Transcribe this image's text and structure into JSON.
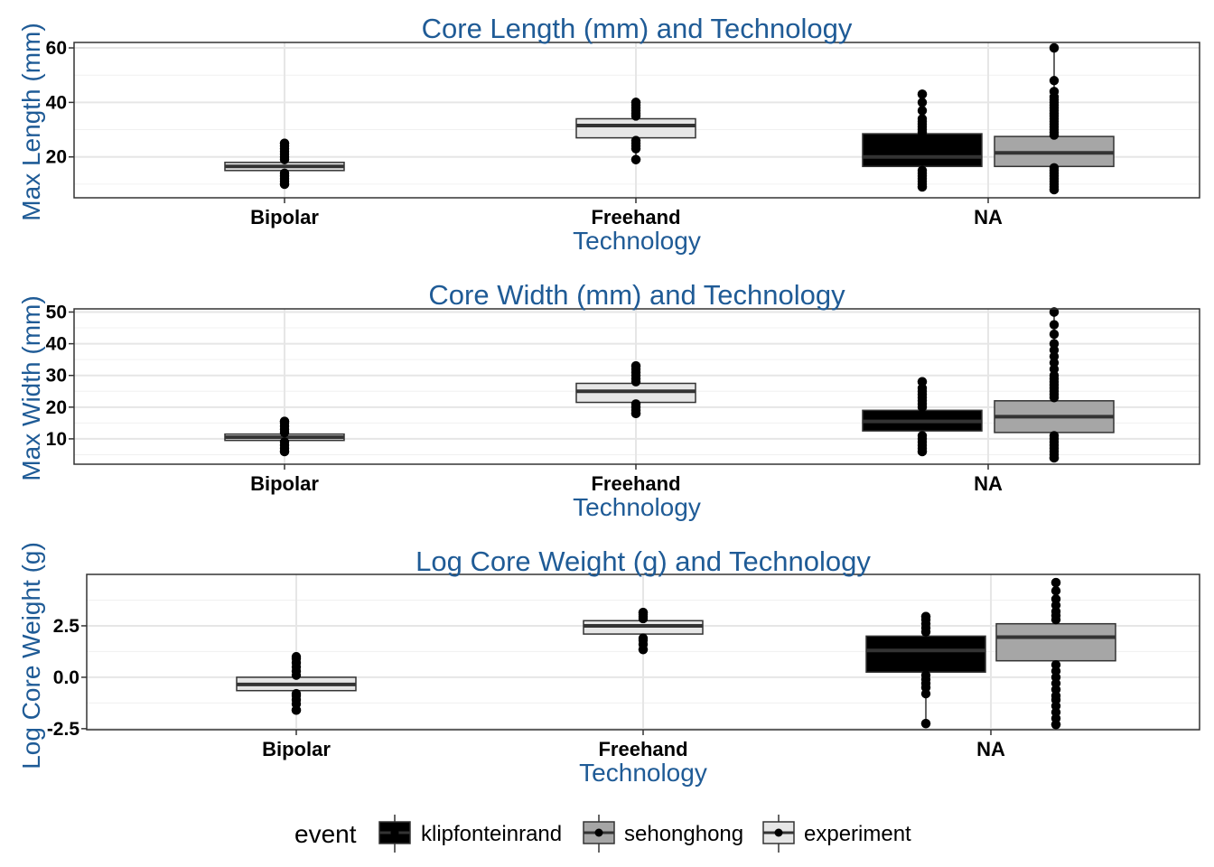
{
  "legend": {
    "title": "event",
    "items": [
      {
        "label": "klipfonteinrand",
        "color": "#000000"
      },
      {
        "label": "sehonghong",
        "color": "#a6a6a6"
      },
      {
        "label": "experiment",
        "color": "#e6e6e6"
      }
    ]
  },
  "chart_data": [
    {
      "type": "boxplot",
      "title": "Core Length (mm) and Technology",
      "xlabel": "Technology",
      "ylabel": "Max Length (mm)",
      "categories": [
        "Bipolar",
        "Freehand",
        "NA"
      ],
      "yticks": [
        "20",
        "40",
        "60"
      ],
      "ytick_values": [
        20,
        40,
        60
      ],
      "ylim": [
        5,
        62
      ],
      "boxes": [
        {
          "category": "Bipolar",
          "event": "experiment",
          "min": 10,
          "q1": 15,
          "median": 16.5,
          "q3": 18,
          "max": 25,
          "points": [
            10,
            11,
            12,
            13,
            14,
            19,
            20,
            21,
            22,
            23,
            24,
            25
          ]
        },
        {
          "category": "Freehand",
          "event": "experiment",
          "min": 19,
          "q1": 27,
          "median": 31.5,
          "q3": 34,
          "max": 40,
          "points": [
            19,
            23,
            24,
            25,
            26,
            35,
            36,
            37,
            38,
            39,
            40
          ]
        },
        {
          "category": "NA",
          "event": "klipfonteinrand",
          "min": 9,
          "q1": 16.5,
          "median": 20,
          "q3": 28.5,
          "max": 43,
          "points": [
            9,
            10,
            11,
            12,
            13,
            14,
            15,
            29,
            30,
            31,
            32,
            33,
            34,
            37,
            40,
            43
          ]
        },
        {
          "category": "NA",
          "event": "sehonghong",
          "min": 8,
          "q1": 16.5,
          "median": 21.5,
          "q3": 27.5,
          "max": 60,
          "points": [
            8,
            9,
            10,
            11,
            12,
            13,
            14,
            15,
            16,
            28,
            29,
            30,
            31,
            32,
            33,
            34,
            35,
            36,
            37,
            38,
            39,
            40,
            41,
            42,
            44,
            48,
            60
          ]
        }
      ]
    },
    {
      "type": "boxplot",
      "title": "Core Width (mm) and Technology",
      "xlabel": "Technology",
      "ylabel": "Max Width (mm)",
      "categories": [
        "Bipolar",
        "Freehand",
        "NA"
      ],
      "yticks": [
        "10",
        "20",
        "30",
        "40",
        "50"
      ],
      "ytick_values": [
        10,
        20,
        30,
        40,
        50
      ],
      "ylim": [
        2,
        51
      ],
      "boxes": [
        {
          "category": "Bipolar",
          "event": "experiment",
          "min": 6,
          "q1": 9.5,
          "median": 10.5,
          "q3": 11.5,
          "max": 15.5,
          "points": [
            6,
            7,
            8,
            9,
            12,
            13,
            14,
            15,
            15.5
          ]
        },
        {
          "category": "Freehand",
          "event": "experiment",
          "min": 18,
          "q1": 21.5,
          "median": 25,
          "q3": 27.5,
          "max": 33,
          "points": [
            18,
            19,
            20,
            21,
            28,
            29,
            30,
            31,
            32,
            33
          ]
        },
        {
          "category": "NA",
          "event": "klipfonteinrand",
          "min": 6,
          "q1": 12.5,
          "median": 15.5,
          "q3": 19,
          "max": 28,
          "points": [
            6,
            7,
            8,
            9,
            10,
            11,
            20,
            21,
            22,
            23,
            24,
            25,
            26,
            28
          ]
        },
        {
          "category": "NA",
          "event": "sehonghong",
          "min": 4,
          "q1": 12,
          "median": 17,
          "q3": 22,
          "max": 50,
          "points": [
            4,
            5,
            6,
            7,
            8,
            9,
            10,
            11,
            23,
            24,
            25,
            26,
            27,
            28,
            29,
            30,
            32,
            34,
            36,
            38,
            40,
            43,
            46,
            50
          ]
        }
      ]
    },
    {
      "type": "boxplot",
      "title": "Log Core Weight (g) and Technology",
      "xlabel": "Technology",
      "ylabel": "Log Core Weight (g)",
      "categories": [
        "Bipolar",
        "Freehand",
        "NA"
      ],
      "yticks": [
        "-2.5",
        "0.0",
        "2.5"
      ],
      "ytick_values": [
        -2.5,
        0,
        2.5
      ],
      "ylim": [
        -2.55,
        5.0
      ],
      "boxes": [
        {
          "category": "Bipolar",
          "event": "experiment",
          "min": -1.6,
          "q1": -0.65,
          "median": -0.35,
          "q3": 0.0,
          "max": 1.0,
          "points": [
            -1.6,
            -1.3,
            -1.1,
            -0.9,
            -0.8,
            0.1,
            0.3,
            0.5,
            0.7,
            0.9
          ]
        },
        {
          "category": "Freehand",
          "event": "experiment",
          "min": 1.35,
          "q1": 2.1,
          "median": 2.5,
          "q3": 2.75,
          "max": 3.15,
          "points": [
            1.35,
            1.6,
            1.8,
            1.9,
            2.85,
            2.95,
            3.05,
            3.15
          ]
        },
        {
          "category": "NA",
          "event": "klipfonteinrand",
          "min": -2.25,
          "q1": 0.25,
          "median": 1.3,
          "q3": 2.0,
          "max": 2.95,
          "points": [
            -2.25,
            -0.8,
            -0.5,
            -0.3,
            -0.1,
            0.1,
            2.2,
            2.4,
            2.6,
            2.8,
            2.95
          ]
        },
        {
          "category": "NA",
          "event": "sehonghong",
          "min": -2.3,
          "q1": 0.8,
          "median": 1.95,
          "q3": 2.6,
          "max": 4.6,
          "points": [
            -2.3,
            -2.0,
            -1.7,
            -1.4,
            -1.1,
            -0.9,
            -0.6,
            -0.3,
            0.0,
            0.3,
            0.6,
            2.8,
            3.0,
            3.2,
            3.5,
            3.8,
            4.2,
            4.6
          ]
        }
      ]
    }
  ]
}
